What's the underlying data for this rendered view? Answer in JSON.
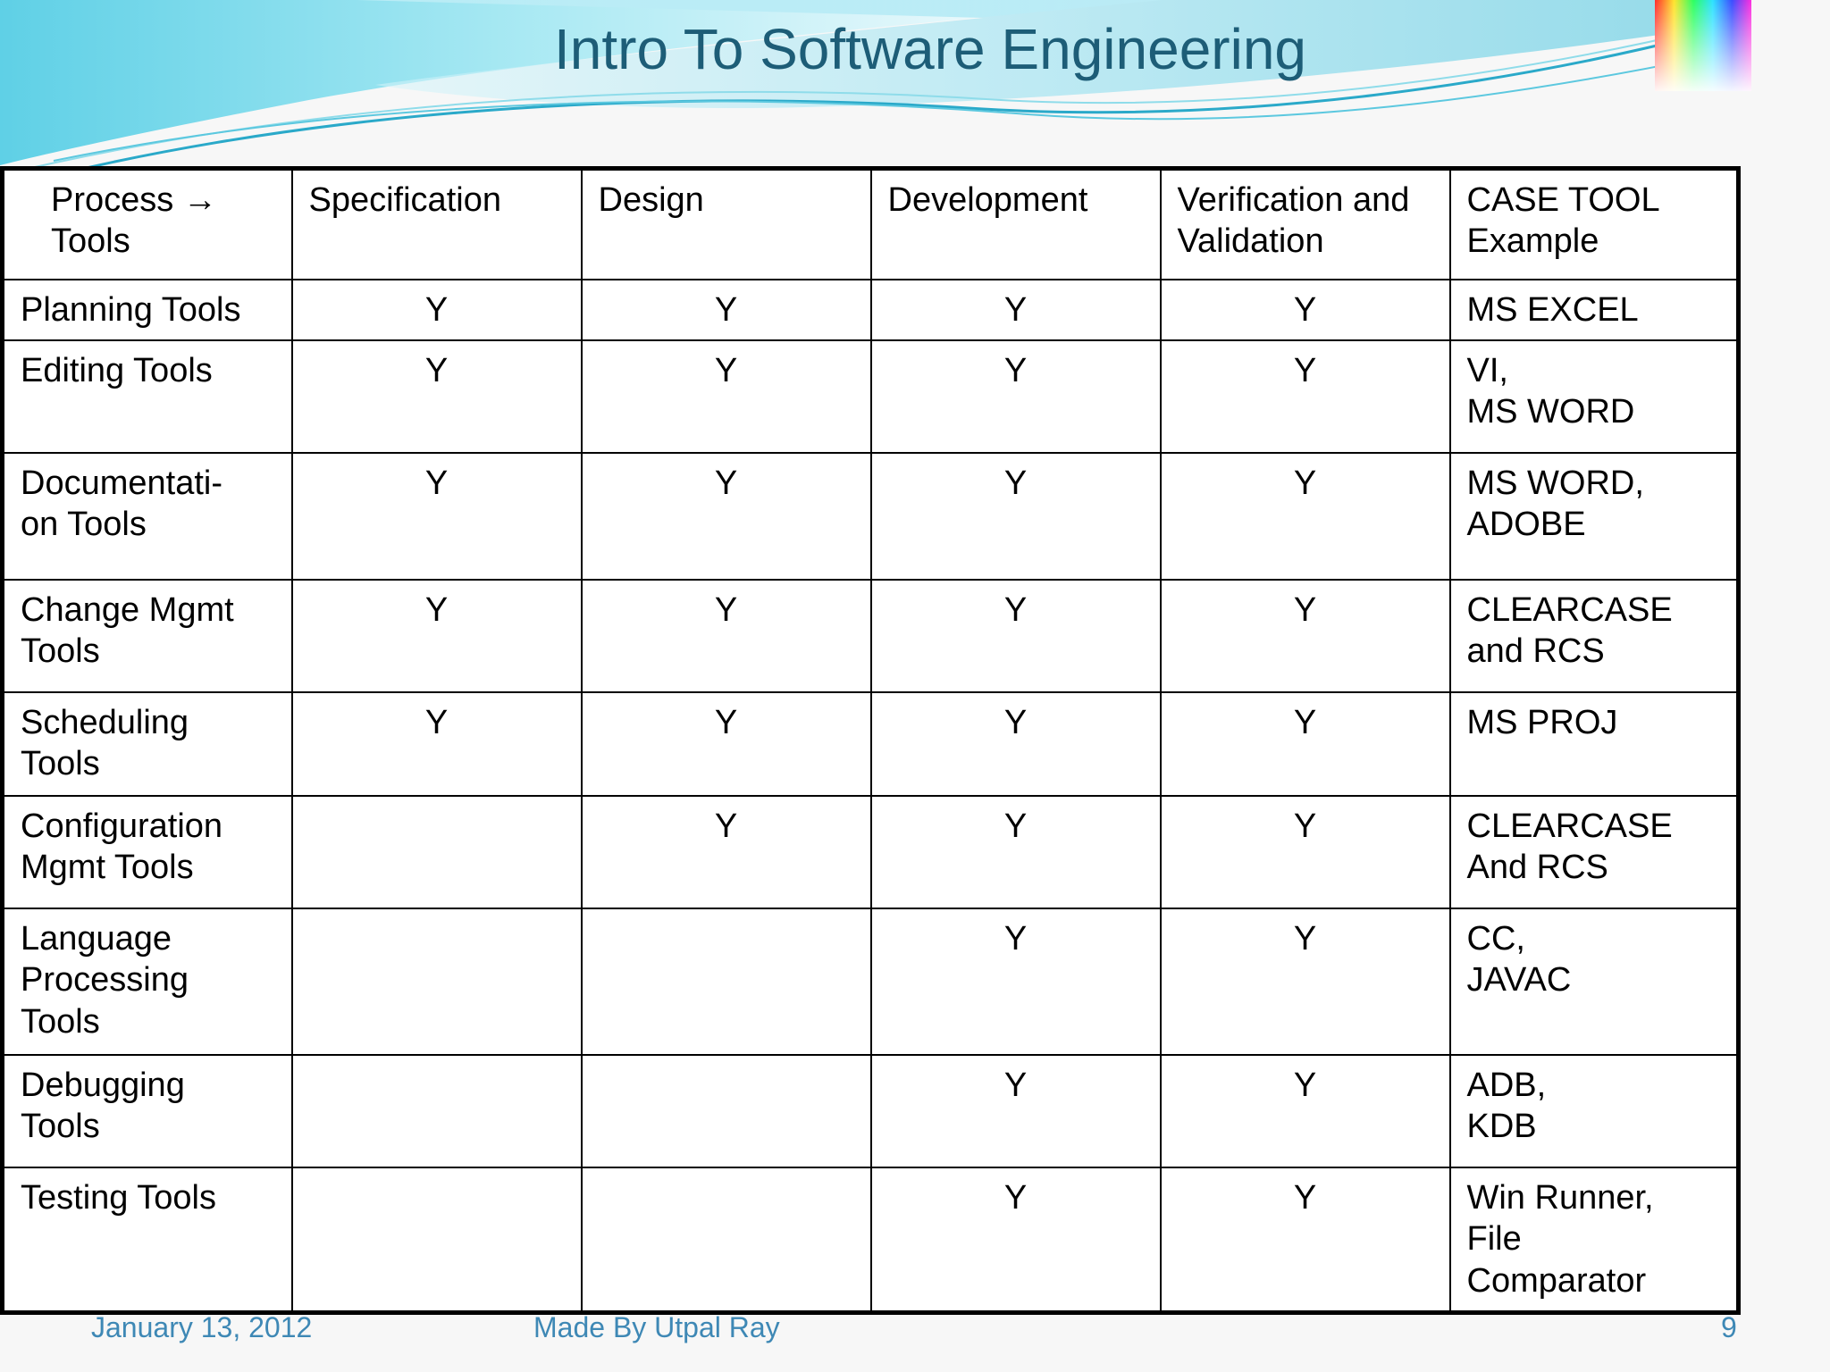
{
  "slide": {
    "title": "Intro To Software Engineering"
  },
  "table": {
    "header": [
      "Process →\nTools",
      "Specification",
      "Design",
      "Development",
      "Verification and\nValidation",
      "CASE TOOL\nExample"
    ],
    "rows": [
      [
        "Planning Tools",
        "Y",
        "Y",
        "Y",
        "Y",
        "MS EXCEL"
      ],
      [
        "Editing Tools",
        "Y",
        "Y",
        "Y",
        "Y",
        "VI,\nMS WORD"
      ],
      [
        "Documentati-\non Tools",
        "Y",
        "Y",
        "Y",
        "Y",
        "MS WORD,\nADOBE"
      ],
      [
        "Change Mgmt\nTools",
        "Y",
        "Y",
        "Y",
        "Y",
        "CLEARCASE\n and RCS"
      ],
      [
        "Scheduling\nTools",
        "Y",
        "Y",
        "Y",
        "Y",
        "MS PROJ"
      ],
      [
        "Configuration\nMgmt Tools",
        "",
        "Y",
        "Y",
        "Y",
        "CLEARCASE\nAnd RCS"
      ],
      [
        "Language\nProcessing\nTools",
        "",
        "",
        "Y",
        "Y",
        "CC,\nJAVAC"
      ],
      [
        "Debugging\nTools",
        "",
        "",
        "Y",
        "Y",
        "ADB,\nKDB"
      ],
      [
        "Testing Tools",
        "",
        "",
        "Y",
        "Y",
        "Win Runner,\nFile\nComparator"
      ]
    ]
  },
  "footer": {
    "date": "January 13, 2012",
    "author": "Made By Utpal Ray",
    "page_number": "9"
  },
  "colors": {
    "title": "#1d5d77",
    "footer": "#3e88b5",
    "wave_light": "#bfeef6",
    "wave_mid": "#67d3e8",
    "wave_dark": "#2aa9c9"
  }
}
